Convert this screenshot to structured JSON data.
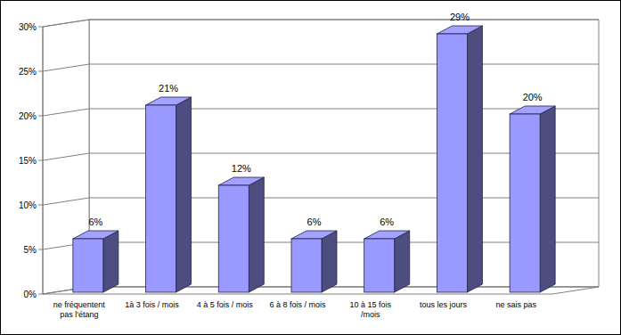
{
  "chart_data": {
    "type": "bar",
    "categories": [
      "ne fréquentent pas l'étang",
      "1à 3 fois / mois",
      "4 à 5 fois / mois",
      "6 à 8 fois / mois",
      "10 à 15 fois /mois",
      "tous les jours",
      "ne sais pas"
    ],
    "values": [
      6,
      21,
      12,
      6,
      6,
      29,
      20
    ],
    "value_labels": [
      "6%",
      "21%",
      "12%",
      "6%",
      "6%",
      "29%",
      "20%"
    ],
    "color": "#9999ff",
    "ylim": [
      0,
      30
    ],
    "yticks": [
      {
        "value": 0,
        "label": "0%"
      },
      {
        "value": 5,
        "label": "5%"
      },
      {
        "value": 10,
        "label": "10%"
      },
      {
        "value": 15,
        "label": "15%"
      },
      {
        "value": 20,
        "label": "20%"
      },
      {
        "value": 25,
        "label": "25%"
      },
      {
        "value": 30,
        "label": "30%"
      }
    ],
    "grid": true,
    "data_labels": true
  }
}
